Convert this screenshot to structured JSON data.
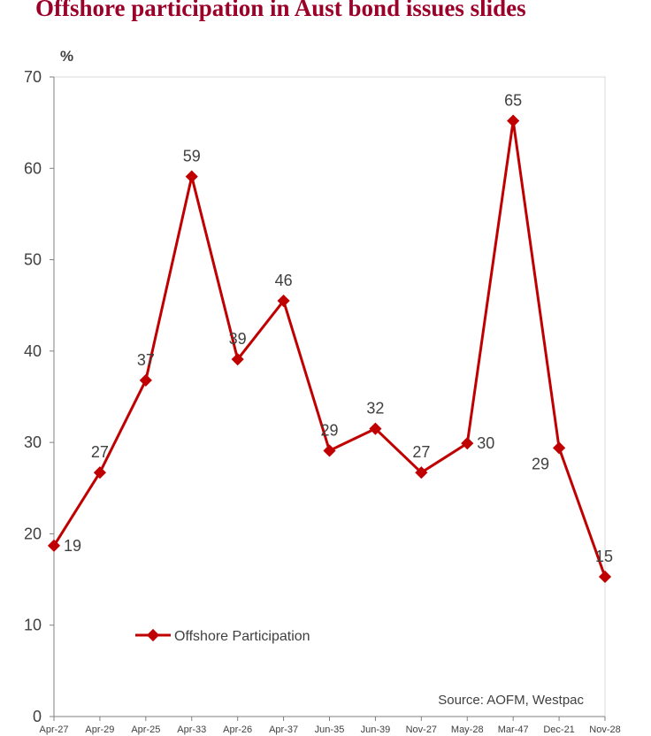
{
  "chart_data": {
    "type": "line",
    "title": "Offshore participation in Aust bond issues slides",
    "ylabel": "%",
    "ylim": [
      0,
      70
    ],
    "yticks": [
      0,
      10,
      20,
      30,
      40,
      50,
      60,
      70
    ],
    "grid": false,
    "legend_position": "bottom-left",
    "categories": [
      "Apr-27",
      "Apr-29",
      "Apr-25",
      "Apr-33",
      "Apr-26",
      "Apr-37",
      "Jun-35",
      "Jun-39",
      "Nov-27",
      "May-28",
      "Mar-47",
      "Dec-21",
      "Nov-28"
    ],
    "series": [
      {
        "name": "Offshore Participation",
        "color": "#c00000",
        "values": [
          18.7,
          26.7,
          36.8,
          59.1,
          39.1,
          45.5,
          29.1,
          31.5,
          26.7,
          29.9,
          65.2,
          29.4,
          15.3
        ],
        "data_labels": [
          "19",
          "27",
          "37",
          "59",
          "39",
          "46",
          "29",
          "32",
          "27",
          "30",
          "65",
          "29",
          "15"
        ]
      }
    ],
    "annotations": {
      "source": "Source: AOFM, Westpac"
    }
  }
}
